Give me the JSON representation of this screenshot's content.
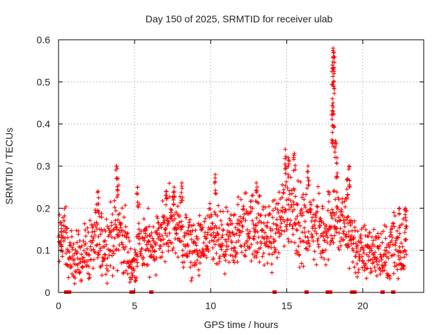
{
  "chart_data": {
    "type": "scatter",
    "title": "Day 150 of 2025, SRMTID for receiver ulab",
    "xlabel": "GPS time / hours",
    "ylabel": "SRMTID / TECUs",
    "xlim": [
      0,
      24
    ],
    "ylim": [
      0,
      0.6
    ],
    "xticks": [
      0,
      5,
      10,
      15,
      20
    ],
    "yticks": [
      0,
      0.1,
      0.2,
      0.3,
      0.4,
      0.5,
      0.6
    ],
    "xtick_labels": [
      "0",
      "5",
      "10",
      "15",
      "20"
    ],
    "ytick_labels": [
      "0",
      "0.1",
      "0.2",
      "0.3",
      "0.4",
      "0.5",
      "0.6"
    ],
    "grid": true,
    "marker": "plus",
    "color": "#ff0000",
    "data_span_hours": [
      0,
      22.9
    ],
    "trend": [
      {
        "t": 0.0,
        "v": 0.1
      },
      {
        "t": 0.3,
        "v": 0.15
      },
      {
        "t": 0.6,
        "v": 0.1
      },
      {
        "t": 1.0,
        "v": 0.07
      },
      {
        "t": 1.5,
        "v": 0.09
      },
      {
        "t": 2.0,
        "v": 0.1
      },
      {
        "t": 2.5,
        "v": 0.13
      },
      {
        "t": 3.0,
        "v": 0.11
      },
      {
        "t": 3.5,
        "v": 0.13
      },
      {
        "t": 4.0,
        "v": 0.15
      },
      {
        "t": 4.5,
        "v": 0.1
      },
      {
        "t": 4.9,
        "v": 0.05
      },
      {
        "t": 5.3,
        "v": 0.12
      },
      {
        "t": 6.0,
        "v": 0.11
      },
      {
        "t": 6.5,
        "v": 0.13
      },
      {
        "t": 7.0,
        "v": 0.15
      },
      {
        "t": 7.5,
        "v": 0.17
      },
      {
        "t": 8.0,
        "v": 0.14
      },
      {
        "t": 8.5,
        "v": 0.11
      },
      {
        "t": 9.0,
        "v": 0.1
      },
      {
        "t": 9.5,
        "v": 0.11
      },
      {
        "t": 10.0,
        "v": 0.13
      },
      {
        "t": 10.5,
        "v": 0.12
      },
      {
        "t": 11.0,
        "v": 0.11
      },
      {
        "t": 11.5,
        "v": 0.13
      },
      {
        "t": 12.0,
        "v": 0.15
      },
      {
        "t": 12.5,
        "v": 0.16
      },
      {
        "t": 13.0,
        "v": 0.15
      },
      {
        "t": 13.5,
        "v": 0.14
      },
      {
        "t": 14.0,
        "v": 0.13
      },
      {
        "t": 14.5,
        "v": 0.17
      },
      {
        "t": 15.0,
        "v": 0.21
      },
      {
        "t": 15.5,
        "v": 0.2
      },
      {
        "t": 16.0,
        "v": 0.15
      },
      {
        "t": 16.5,
        "v": 0.17
      },
      {
        "t": 17.0,
        "v": 0.15
      },
      {
        "t": 17.5,
        "v": 0.14
      },
      {
        "t": 18.0,
        "v": 0.19
      },
      {
        "t": 18.5,
        "v": 0.16
      },
      {
        "t": 19.0,
        "v": 0.15
      },
      {
        "t": 19.3,
        "v": 0.13
      },
      {
        "t": 19.6,
        "v": 0.1
      },
      {
        "t": 20.0,
        "v": 0.09
      },
      {
        "t": 20.5,
        "v": 0.1
      },
      {
        "t": 21.0,
        "v": 0.09
      },
      {
        "t": 21.5,
        "v": 0.08
      },
      {
        "t": 22.0,
        "v": 0.12
      },
      {
        "t": 22.5,
        "v": 0.1
      },
      {
        "t": 22.9,
        "v": 0.13
      }
    ],
    "spikes": [
      {
        "t": 0.2,
        "v": 0.16
      },
      {
        "t": 2.6,
        "v": 0.24
      },
      {
        "t": 3.8,
        "v": 0.3
      },
      {
        "t": 3.9,
        "v": 0.27
      },
      {
        "t": 5.2,
        "v": 0.25
      },
      {
        "t": 7.1,
        "v": 0.24
      },
      {
        "t": 7.6,
        "v": 0.25
      },
      {
        "t": 8.1,
        "v": 0.26
      },
      {
        "t": 10.3,
        "v": 0.28
      },
      {
        "t": 13.0,
        "v": 0.26
      },
      {
        "t": 14.9,
        "v": 0.34
      },
      {
        "t": 15.1,
        "v": 0.32
      },
      {
        "t": 15.5,
        "v": 0.33
      },
      {
        "t": 16.4,
        "v": 0.3
      },
      {
        "t": 18.05,
        "v": 0.58
      },
      {
        "t": 18.1,
        "v": 0.57
      },
      {
        "t": 18.0,
        "v": 0.54
      },
      {
        "t": 18.1,
        "v": 0.52
      },
      {
        "t": 18.0,
        "v": 0.46
      },
      {
        "t": 18.05,
        "v": 0.44
      },
      {
        "t": 18.0,
        "v": 0.38
      },
      {
        "t": 18.2,
        "v": 0.36
      },
      {
        "t": 18.3,
        "v": 0.32
      },
      {
        "t": 19.1,
        "v": 0.3
      },
      {
        "t": 19.0,
        "v": 0.27
      },
      {
        "t": 22.4,
        "v": 0.2
      },
      {
        "t": 22.8,
        "v": 0.2
      }
    ],
    "zero_clusters": [
      0.5,
      0.7,
      4.8,
      4.9,
      6.1,
      14.2,
      16.3,
      17.7,
      17.85,
      19.3,
      19.45,
      21.3,
      22.0
    ]
  }
}
